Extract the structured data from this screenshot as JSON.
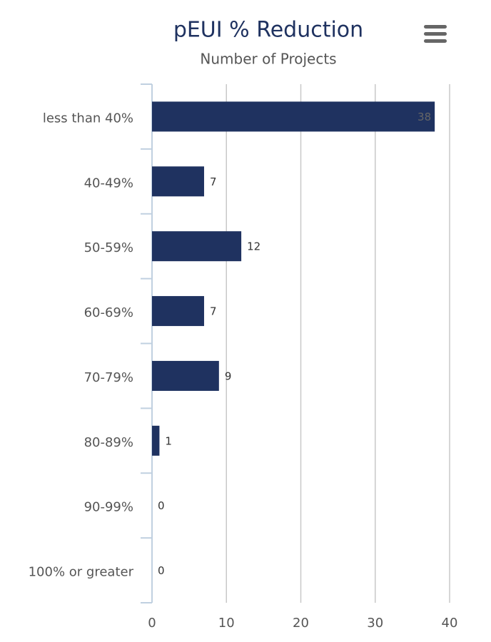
{
  "chart_data": {
    "type": "bar",
    "orientation": "horizontal",
    "title": "pEUI % Reduction",
    "subtitle": "Number of Projects",
    "categories": [
      "less than 40%",
      "40-49%",
      "50-59%",
      "60-69%",
      "70-79%",
      "80-89%",
      "90-99%",
      "100% or greater"
    ],
    "values": [
      38,
      7,
      12,
      7,
      9,
      1,
      0,
      0
    ],
    "color": "#1f3260",
    "xlim": [
      0,
      40
    ],
    "xticks": [
      0,
      10,
      20,
      30,
      40
    ],
    "grid": true
  }
}
